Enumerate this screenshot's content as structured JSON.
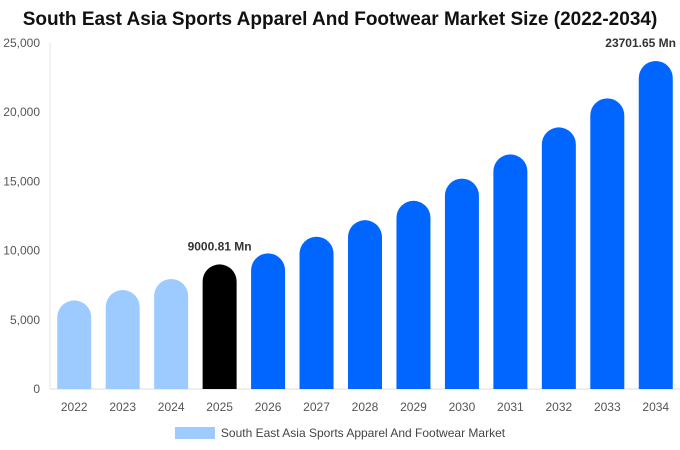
{
  "chart_data": {
    "type": "bar",
    "title": "South East Asia Sports Apparel And Footwear Market Size (2022-2034)",
    "categories": [
      "2022",
      "2023",
      "2024",
      "2025",
      "2026",
      "2027",
      "2028",
      "2029",
      "2030",
      "2031",
      "2032",
      "2033",
      "2034"
    ],
    "series": [
      {
        "name": "South East Asia Sports Apparel And Footwear Market",
        "values": [
          6400,
          7150,
          7950,
          9000.81,
          9800,
          11000,
          12200,
          13600,
          15200,
          16950,
          18900,
          21000,
          23701.65
        ]
      }
    ],
    "bar_colors": [
      "#9ecbff",
      "#9ecbff",
      "#9ecbff",
      "#000000",
      "#0066ff",
      "#0066ff",
      "#0066ff",
      "#0066ff",
      "#0066ff",
      "#0066ff",
      "#0066ff",
      "#0066ff",
      "#0066ff"
    ],
    "data_labels": [
      {
        "category": "2025",
        "text": "9000.81 Mn"
      },
      {
        "category": "2034",
        "text": "23701.65 Mn"
      }
    ],
    "yticks": [
      0,
      5000,
      10000,
      15000,
      20000,
      25000
    ],
    "ytick_labels": [
      "0",
      "5,000",
      "10,000",
      "15,000",
      "20,000",
      "25,000"
    ],
    "ylim": [
      0,
      25000
    ],
    "xlabel": "",
    "ylabel": "",
    "grid": false,
    "legend_position": "bottom",
    "legend_color": "#9ecbff"
  }
}
